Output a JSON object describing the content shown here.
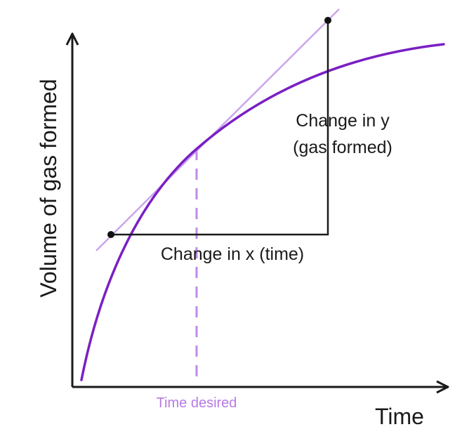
{
  "diagram": {
    "y_axis_label": "Volume of gas formed",
    "x_axis_label": "Time",
    "marker_label": "Time desired",
    "change_y_line1": "Change in y",
    "change_y_line2": "(gas formed)",
    "change_x_label": "Change in x (time)"
  },
  "colors": {
    "curve": "#7a1fc4",
    "tangent": "#caa5ec",
    "marker": "#c08ae8",
    "marker_text": "#b77ae6",
    "axes": "#1a1a1a",
    "text": "#1a1a1a"
  }
}
